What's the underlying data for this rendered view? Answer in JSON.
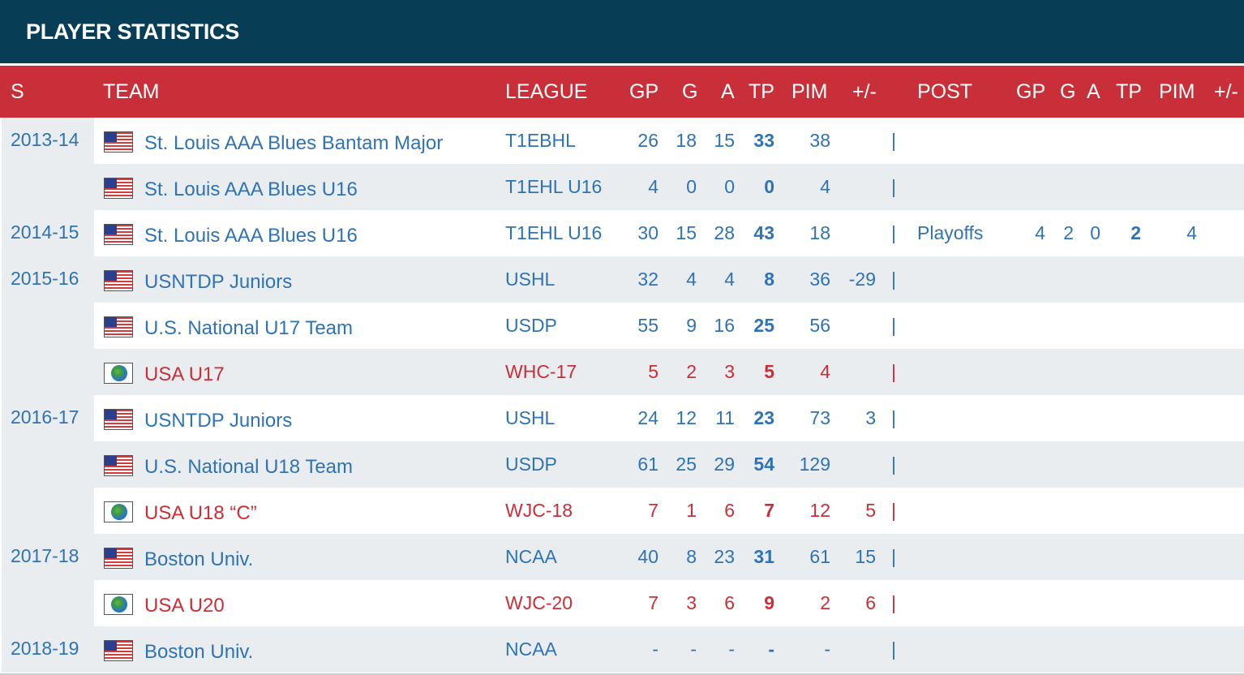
{
  "title": "PLAYER STATISTICS",
  "columns": {
    "season": "S",
    "team": "TEAM",
    "league": "LEAGUE",
    "gp": "GP",
    "g": "G",
    "a": "A",
    "tp": "TP",
    "pim": "PIM",
    "pm": "+/-",
    "post": "POST",
    "post_gp": "GP",
    "post_g": "G",
    "post_a": "A",
    "post_tp": "TP",
    "post_pim": "PIM",
    "post_pm": "+/-"
  },
  "separator": "|",
  "flags": {
    "us": "usa-flag-icon",
    "world": "world-flag-icon"
  },
  "colors": {
    "navy": "#083d56",
    "red": "#c92f38",
    "link": "#2f73b3",
    "alt_row": "#e9edf0"
  },
  "rows": [
    {
      "season": "2013-14",
      "flag": "us",
      "intl": false,
      "team": "St. Louis AAA Blues Bantam Major",
      "league": "T1EBHL",
      "gp": "26",
      "g": "18",
      "a": "15",
      "tp": "33",
      "pim": "38",
      "pm": "",
      "post": "",
      "post_gp": "",
      "post_g": "",
      "post_a": "",
      "post_tp": "",
      "post_pim": "",
      "post_pm": ""
    },
    {
      "season": "",
      "flag": "us",
      "intl": false,
      "team": "St. Louis AAA Blues U16",
      "league": "T1EHL U16",
      "gp": "4",
      "g": "0",
      "a": "0",
      "tp": "0",
      "pim": "4",
      "pm": "",
      "post": "",
      "post_gp": "",
      "post_g": "",
      "post_a": "",
      "post_tp": "",
      "post_pim": "",
      "post_pm": ""
    },
    {
      "season": "2014-15",
      "flag": "us",
      "intl": false,
      "team": "St. Louis AAA Blues U16",
      "league": "T1EHL U16",
      "gp": "30",
      "g": "15",
      "a": "28",
      "tp": "43",
      "pim": "18",
      "pm": "",
      "post": "Playoffs",
      "post_gp": "4",
      "post_g": "2",
      "post_a": "0",
      "post_tp": "2",
      "post_pim": "4",
      "post_pm": ""
    },
    {
      "season": "2015-16",
      "flag": "us",
      "intl": false,
      "team": "USNTDP Juniors",
      "league": "USHL",
      "gp": "32",
      "g": "4",
      "a": "4",
      "tp": "8",
      "pim": "36",
      "pm": "-29",
      "post": "",
      "post_gp": "",
      "post_g": "",
      "post_a": "",
      "post_tp": "",
      "post_pim": "",
      "post_pm": ""
    },
    {
      "season": "",
      "flag": "us",
      "intl": false,
      "team": "U.S. National U17 Team",
      "league": "USDP",
      "gp": "55",
      "g": "9",
      "a": "16",
      "tp": "25",
      "pim": "56",
      "pm": "",
      "post": "",
      "post_gp": "",
      "post_g": "",
      "post_a": "",
      "post_tp": "",
      "post_pim": "",
      "post_pm": ""
    },
    {
      "season": "",
      "flag": "world",
      "intl": true,
      "team": "USA U17",
      "league": "WHC-17",
      "gp": "5",
      "g": "2",
      "a": "3",
      "tp": "5",
      "pim": "4",
      "pm": "",
      "post": "",
      "post_gp": "",
      "post_g": "",
      "post_a": "",
      "post_tp": "",
      "post_pim": "",
      "post_pm": ""
    },
    {
      "season": "2016-17",
      "flag": "us",
      "intl": false,
      "team": "USNTDP Juniors",
      "league": "USHL",
      "gp": "24",
      "g": "12",
      "a": "11",
      "tp": "23",
      "pim": "73",
      "pm": "3",
      "post": "",
      "post_gp": "",
      "post_g": "",
      "post_a": "",
      "post_tp": "",
      "post_pim": "",
      "post_pm": ""
    },
    {
      "season": "",
      "flag": "us",
      "intl": false,
      "team": "U.S. National U18 Team",
      "league": "USDP",
      "gp": "61",
      "g": "25",
      "a": "29",
      "tp": "54",
      "pim": "129",
      "pm": "",
      "post": "",
      "post_gp": "",
      "post_g": "",
      "post_a": "",
      "post_tp": "",
      "post_pim": "",
      "post_pm": ""
    },
    {
      "season": "",
      "flag": "world",
      "intl": true,
      "team": "USA U18 “C”",
      "league": "WJC-18",
      "gp": "7",
      "g": "1",
      "a": "6",
      "tp": "7",
      "pim": "12",
      "pm": "5",
      "post": "",
      "post_gp": "",
      "post_g": "",
      "post_a": "",
      "post_tp": "",
      "post_pim": "",
      "post_pm": ""
    },
    {
      "season": "2017-18",
      "flag": "us",
      "intl": false,
      "team": "Boston Univ.",
      "league": "NCAA",
      "gp": "40",
      "g": "8",
      "a": "23",
      "tp": "31",
      "pim": "61",
      "pm": "15",
      "post": "",
      "post_gp": "",
      "post_g": "",
      "post_a": "",
      "post_tp": "",
      "post_pim": "",
      "post_pm": ""
    },
    {
      "season": "",
      "flag": "world",
      "intl": true,
      "team": "USA U20",
      "league": "WJC-20",
      "gp": "7",
      "g": "3",
      "a": "6",
      "tp": "9",
      "pim": "2",
      "pm": "6",
      "post": "",
      "post_gp": "",
      "post_g": "",
      "post_a": "",
      "post_tp": "",
      "post_pim": "",
      "post_pm": ""
    },
    {
      "season": "2018-19",
      "flag": "us",
      "intl": false,
      "team": "Boston Univ.",
      "league": "NCAA",
      "gp": "-",
      "g": "-",
      "a": "-",
      "tp": "-",
      "pim": "-",
      "pm": "",
      "post": "",
      "post_gp": "",
      "post_g": "",
      "post_a": "",
      "post_tp": "",
      "post_pim": "",
      "post_pm": ""
    }
  ]
}
